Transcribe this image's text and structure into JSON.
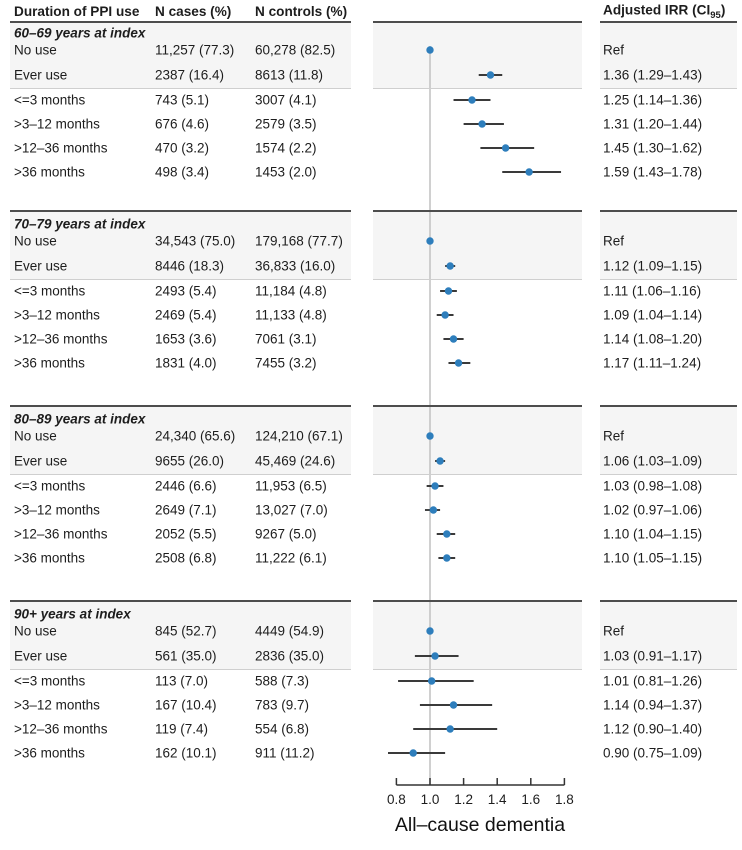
{
  "header": {
    "col_duration": "Duration of PPI use",
    "col_cases": "N cases (%)",
    "col_controls": "N controls (%)",
    "irr_prefix": "Adjusted IRR (CI",
    "irr_sub": "95",
    "irr_suffix": ")"
  },
  "axis": {
    "title": "All–cause dementia",
    "tick_labels": [
      "0.8",
      "1.0",
      "1.2",
      "1.4",
      "1.6",
      "1.8"
    ],
    "tick_values": [
      0.8,
      1.0,
      1.2,
      1.4,
      1.6,
      1.8
    ]
  },
  "colors": {
    "point": "#2e7ebc",
    "ci_line": "#3a3a3a",
    "ref_line": "#c4c4c4",
    "axis_line": "#333333",
    "shade": "#f5f5f5",
    "rule_dark": "#4d4d4d",
    "rule_light": "#cfcfcf",
    "text": "#1d1d1d"
  },
  "groups": [
    {
      "title": "60–69 years at index",
      "rows": [
        {
          "label": "No use",
          "cases": "11,257 (77.3)",
          "controls": "60,278 (82.5)",
          "irr": "Ref"
        },
        {
          "label": "Ever use",
          "cases": "2387 (16.4)",
          "controls": "8613 (11.8)",
          "irr": "1.36 (1.29–1.43)"
        },
        {
          "label": "<=3 months",
          "cases": "743 (5.1)",
          "controls": "3007 (4.1)",
          "irr": "1.25 (1.14–1.36)"
        },
        {
          "label": ">3–12 months",
          "cases": "676 (4.6)",
          "controls": "2579 (3.5)",
          "irr": "1.31 (1.20–1.44)"
        },
        {
          "label": ">12–36 months",
          "cases": "470 (3.2)",
          "controls": "1574 (2.2)",
          "irr": "1.45 (1.30–1.62)"
        },
        {
          "label": ">36 months",
          "cases": "498 (3.4)",
          "controls": "1453 (2.0)",
          "irr": "1.59 (1.43–1.78)"
        }
      ]
    },
    {
      "title": "70–79 years at index",
      "rows": [
        {
          "label": "No use",
          "cases": "34,543 (75.0)",
          "controls": "179,168 (77.7)",
          "irr": "Ref"
        },
        {
          "label": "Ever use",
          "cases": "8446 (18.3)",
          "controls": "36,833 (16.0)",
          "irr": "1.12 (1.09–1.15)"
        },
        {
          "label": "<=3 months",
          "cases": "2493 (5.4)",
          "controls": "11,184 (4.8)",
          "irr": "1.11 (1.06–1.16)"
        },
        {
          "label": ">3–12 months",
          "cases": "2469 (5.4)",
          "controls": "11,133 (4.8)",
          "irr": "1.09 (1.04–1.14)"
        },
        {
          "label": ">12–36 months",
          "cases": "1653 (3.6)",
          "controls": "7061 (3.1)",
          "irr": "1.14 (1.08–1.20)"
        },
        {
          "label": ">36 months",
          "cases": "1831 (4.0)",
          "controls": "7455 (3.2)",
          "irr": "1.17 (1.11–1.24)"
        }
      ]
    },
    {
      "title": "80–89 years at index",
      "rows": [
        {
          "label": "No use",
          "cases": "24,340 (65.6)",
          "controls": "124,210 (67.1)",
          "irr": "Ref"
        },
        {
          "label": "Ever use",
          "cases": "9655 (26.0)",
          "controls": "45,469 (24.6)",
          "irr": "1.06 (1.03–1.09)"
        },
        {
          "label": "<=3 months",
          "cases": "2446 (6.6)",
          "controls": "11,953 (6.5)",
          "irr": "1.03 (0.98–1.08)"
        },
        {
          "label": ">3–12 months",
          "cases": "2649 (7.1)",
          "controls": "13,027 (7.0)",
          "irr": "1.02 (0.97–1.06)"
        },
        {
          "label": ">12–36 months",
          "cases": "2052 (5.5)",
          "controls": "9267 (5.0)",
          "irr": "1.10 (1.04–1.15)"
        },
        {
          "label": ">36 months",
          "cases": "2508 (6.8)",
          "controls": "11,222 (6.1)",
          "irr": "1.10 (1.05–1.15)"
        }
      ]
    },
    {
      "title": "90+ years at index",
      "rows": [
        {
          "label": "No use",
          "cases": "845 (52.7)",
          "controls": "4449 (54.9)",
          "irr": "Ref"
        },
        {
          "label": "Ever use",
          "cases": "561 (35.0)",
          "controls": "2836 (35.0)",
          "irr": "1.03 (0.91–1.17)"
        },
        {
          "label": "<=3 months",
          "cases": "113 (7.0)",
          "controls": "588 (7.3)",
          "irr": "1.01 (0.81–1.26)"
        },
        {
          "label": ">3–12 months",
          "cases": "167 (10.4)",
          "controls": "783 (9.7)",
          "irr": "1.14 (0.94–1.37)"
        },
        {
          "label": ">12–36 months",
          "cases": "119 (7.4)",
          "controls": "554 (6.8)",
          "irr": "1.12 (0.90–1.40)"
        },
        {
          "label": ">36 months",
          "cases": "162 (10.1)",
          "controls": "911 (11.2)",
          "irr": "0.90 (0.75–1.09)"
        }
      ]
    }
  ],
  "chart_data": {
    "type": "forest",
    "xlabel": "All–cause dementia",
    "x_ticks": [
      0.8,
      1.0,
      1.2,
      1.4,
      1.6,
      1.8
    ],
    "xlim": [
      0.8,
      1.8
    ],
    "ref_value": 1.0,
    "groups": [
      {
        "name": "60–69 years at index",
        "categories": [
          "No use",
          "Ever use",
          "<=3 months",
          ">3–12 months",
          ">12–36 months",
          ">36 months"
        ],
        "est": [
          1.0,
          1.36,
          1.25,
          1.31,
          1.45,
          1.59
        ],
        "lo": [
          null,
          1.29,
          1.14,
          1.2,
          1.3,
          1.43
        ],
        "hi": [
          null,
          1.43,
          1.36,
          1.44,
          1.62,
          1.78
        ]
      },
      {
        "name": "70–79 years at index",
        "categories": [
          "No use",
          "Ever use",
          "<=3 months",
          ">3–12 months",
          ">12–36 months",
          ">36 months"
        ],
        "est": [
          1.0,
          1.12,
          1.11,
          1.09,
          1.14,
          1.17
        ],
        "lo": [
          null,
          1.09,
          1.06,
          1.04,
          1.08,
          1.11
        ],
        "hi": [
          null,
          1.15,
          1.16,
          1.14,
          1.2,
          1.24
        ]
      },
      {
        "name": "80–89 years at index",
        "categories": [
          "No use",
          "Ever use",
          "<=3 months",
          ">3–12 months",
          ">12–36 months",
          ">36 months"
        ],
        "est": [
          1.0,
          1.06,
          1.03,
          1.02,
          1.1,
          1.1
        ],
        "lo": [
          null,
          1.03,
          0.98,
          0.97,
          1.04,
          1.05
        ],
        "hi": [
          null,
          1.09,
          1.08,
          1.06,
          1.15,
          1.15
        ]
      },
      {
        "name": "90+ years at index",
        "categories": [
          "No use",
          "Ever use",
          "<=3 months",
          ">3–12 months",
          ">12–36 months",
          ">36 months"
        ],
        "est": [
          1.0,
          1.03,
          1.01,
          1.14,
          1.12,
          0.9
        ],
        "lo": [
          null,
          0.91,
          0.81,
          0.94,
          0.9,
          0.75
        ],
        "hi": [
          null,
          1.17,
          1.26,
          1.37,
          1.4,
          1.09
        ]
      }
    ]
  }
}
